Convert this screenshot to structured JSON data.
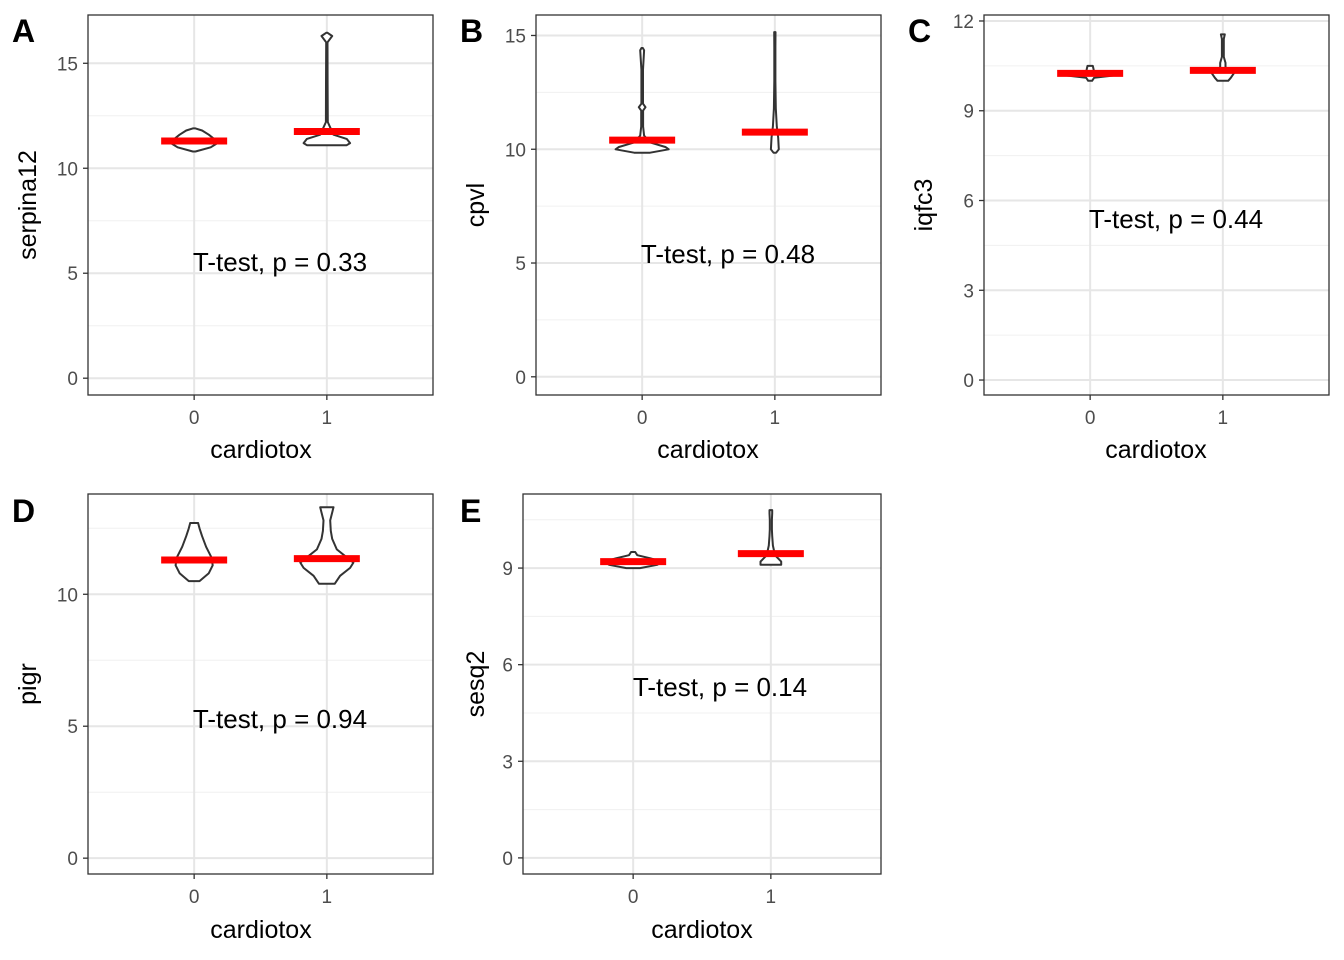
{
  "chart_data": [
    {
      "type": "violin",
      "panel_tag": "A",
      "ylabel": "serpina12",
      "xlabel": "cardiotox",
      "categories": [
        "0",
        "1"
      ],
      "yticks": [
        0,
        5,
        10,
        15
      ],
      "ylim": [
        -0.8,
        17.3
      ],
      "annotation": "T-test, p = 0.33",
      "grid": true,
      "means": [
        11.3,
        11.75
      ],
      "violins": [
        {
          "category": "0",
          "profile": [
            [
              10.8,
              0.02
            ],
            [
              11.0,
              0.25
            ],
            [
              11.2,
              0.35
            ],
            [
              11.4,
              0.3
            ],
            [
              11.6,
              0.22
            ],
            [
              11.8,
              0.12
            ],
            [
              11.9,
              0.02
            ]
          ]
        },
        {
          "category": "1",
          "profile": [
            [
              11.1,
              0.3
            ],
            [
              11.2,
              0.35
            ],
            [
              11.4,
              0.3
            ],
            [
              11.6,
              0.1
            ],
            [
              12.2,
              0.015
            ],
            [
              14.0,
              0.012
            ],
            [
              16.0,
              0.01
            ],
            [
              16.3,
              0.08
            ],
            [
              16.45,
              0.01
            ]
          ]
        }
      ]
    },
    {
      "type": "violin",
      "panel_tag": "B",
      "ylabel": "cpvl",
      "xlabel": "cardiotox",
      "categories": [
        "0",
        "1"
      ],
      "yticks": [
        0,
        5,
        10,
        15
      ],
      "ylim": [
        -0.8,
        15.9
      ],
      "annotation": "T-test, p = 0.48",
      "grid": true,
      "means": [
        10.4,
        10.75
      ],
      "violins": [
        {
          "category": "0",
          "profile": [
            [
              9.85,
              0.12
            ],
            [
              10.0,
              0.4
            ],
            [
              10.1,
              0.35
            ],
            [
              10.3,
              0.12
            ],
            [
              10.6,
              0.03
            ],
            [
              11.0,
              0.015
            ],
            [
              11.7,
              0.015
            ],
            [
              11.85,
              0.05
            ],
            [
              12.0,
              0.012
            ],
            [
              13.5,
              0.012
            ],
            [
              14.35,
              0.03
            ],
            [
              14.45,
              0.01
            ]
          ]
        },
        {
          "category": "1",
          "profile": [
            [
              9.85,
              0.02
            ],
            [
              10.0,
              0.06
            ],
            [
              10.5,
              0.05
            ],
            [
              11.0,
              0.03
            ],
            [
              11.8,
              0.015
            ],
            [
              13.0,
              0.008
            ],
            [
              14.5,
              0.008
            ],
            [
              15.15,
              0.01
            ]
          ]
        }
      ]
    },
    {
      "type": "violin",
      "panel_tag": "C",
      "ylabel": "iqfc3",
      "xlabel": "cardiotox",
      "categories": [
        "0",
        "1"
      ],
      "yticks": [
        0,
        3,
        6,
        9,
        12
      ],
      "ylim": [
        -0.5,
        12.2
      ],
      "annotation": "T-test, p = 0.44",
      "grid": true,
      "means": [
        10.25,
        10.35
      ],
      "violins": [
        {
          "category": "0",
          "profile": [
            [
              10.0,
              0.03
            ],
            [
              10.1,
              0.06
            ],
            [
              10.2,
              0.45
            ],
            [
              10.3,
              0.06
            ],
            [
              10.4,
              0.05
            ],
            [
              10.5,
              0.04
            ]
          ]
        },
        {
          "category": "1",
          "profile": [
            [
              10.0,
              0.08
            ],
            [
              10.1,
              0.12
            ],
            [
              10.3,
              0.18
            ],
            [
              10.45,
              0.04
            ],
            [
              10.6,
              0.04
            ],
            [
              10.8,
              0.015
            ],
            [
              11.4,
              0.015
            ],
            [
              11.55,
              0.03
            ]
          ]
        }
      ]
    },
    {
      "type": "violin",
      "panel_tag": "D",
      "ylabel": "pigr",
      "xlabel": "cardiotox",
      "categories": [
        "0",
        "1"
      ],
      "yticks": [
        0,
        5,
        10
      ],
      "ylim": [
        -0.6,
        13.8
      ],
      "annotation": "T-test, p = 0.94",
      "grid": true,
      "means": [
        11.3,
        11.35
      ],
      "violins": [
        {
          "category": "0",
          "profile": [
            [
              10.5,
              0.08
            ],
            [
              10.8,
              0.22
            ],
            [
              11.1,
              0.28
            ],
            [
              11.4,
              0.26
            ],
            [
              11.8,
              0.18
            ],
            [
              12.2,
              0.12
            ],
            [
              12.5,
              0.08
            ],
            [
              12.7,
              0.06
            ]
          ]
        },
        {
          "category": "1",
          "profile": [
            [
              10.4,
              0.12
            ],
            [
              10.7,
              0.2
            ],
            [
              11.0,
              0.35
            ],
            [
              11.2,
              0.4
            ],
            [
              11.4,
              0.3
            ],
            [
              11.7,
              0.15
            ],
            [
              12.1,
              0.08
            ],
            [
              12.4,
              0.06
            ],
            [
              12.8,
              0.05
            ],
            [
              13.1,
              0.08
            ],
            [
              13.3,
              0.1
            ]
          ]
        }
      ]
    },
    {
      "type": "violin",
      "panel_tag": "E",
      "ylabel": "sesq2",
      "xlabel": "cardiotox",
      "categories": [
        "0",
        "1"
      ],
      "yticks": [
        0,
        3,
        6,
        9
      ],
      "ylim": [
        -0.5,
        11.3
      ],
      "annotation": "T-test, p = 0.14",
      "grid": true,
      "means": [
        9.2,
        9.45
      ],
      "violins": [
        {
          "category": "0",
          "profile": [
            [
              9.0,
              0.1
            ],
            [
              9.1,
              0.35
            ],
            [
              9.2,
              0.42
            ],
            [
              9.3,
              0.25
            ],
            [
              9.4,
              0.06
            ],
            [
              9.5,
              0.03
            ]
          ]
        },
        {
          "category": "1",
          "profile": [
            [
              9.1,
              0.15
            ],
            [
              9.2,
              0.15
            ],
            [
              9.4,
              0.06
            ],
            [
              9.7,
              0.03
            ],
            [
              10.0,
              0.02
            ],
            [
              10.2,
              0.015
            ],
            [
              10.5,
              0.015
            ],
            [
              10.7,
              0.02
            ],
            [
              10.8,
              0.02
            ]
          ]
        }
      ]
    }
  ]
}
